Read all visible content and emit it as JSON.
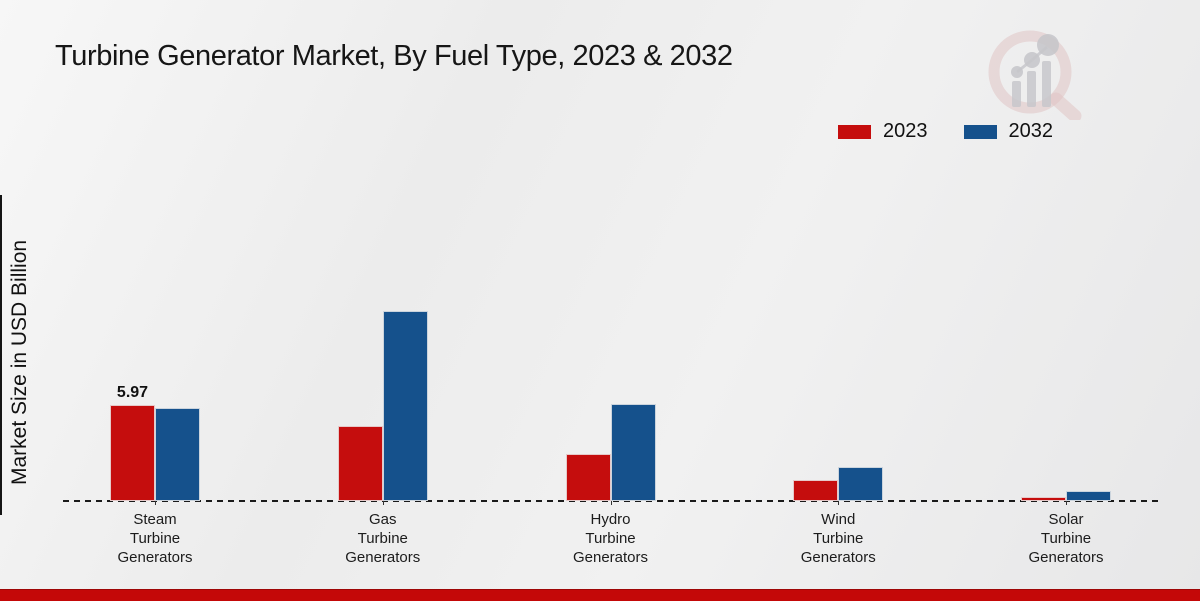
{
  "title": "Turbine Generator Market, By Fuel Type, 2023 & 2032",
  "ylabel": "Market Size in USD Billion",
  "legend": [
    {
      "label": "2023",
      "color": "#c50d0d"
    },
    {
      "label": "2032",
      "color": "#15518c"
    }
  ],
  "colors": {
    "series_2023": "#c50d0d",
    "series_2032": "#15518c",
    "bottom_bar": "#c40808",
    "baseline": "#1a1a1a"
  },
  "watermark": "magnifier-bar-chart-logo",
  "chart_data": {
    "type": "bar",
    "title": "Turbine Generator Market, By Fuel Type, 2023 & 2032",
    "ylabel": "Market Size in USD Billion",
    "categories": [
      "Steam Turbine Generators",
      "Gas Turbine Generators",
      "Hydro Turbine Generators",
      "Wind Turbine Generators",
      "Solar Turbine Generators"
    ],
    "series": [
      {
        "name": "2023",
        "color": "#c50d0d",
        "values": [
          5.97,
          4.66,
          2.92,
          1.31,
          0.25
        ]
      },
      {
        "name": "2032",
        "color": "#15518c",
        "values": [
          5.78,
          11.8,
          6.03,
          2.11,
          0.6
        ]
      }
    ],
    "annotations": [
      {
        "series": "2023",
        "category_index": 0,
        "text": "5.97"
      }
    ],
    "ylim": [
      0,
      13
    ],
    "grid": false,
    "baseline_dashed": true,
    "legend_position": "top-right"
  }
}
